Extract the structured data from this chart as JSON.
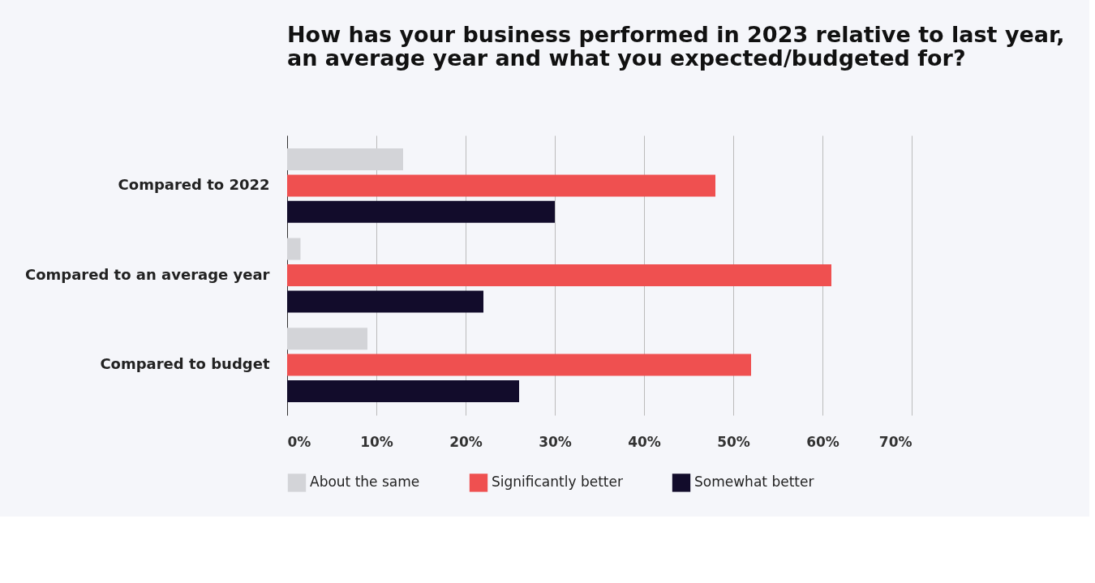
{
  "chart_data": {
    "type": "bar",
    "orientation": "horizontal",
    "title": "How has your business performed in 2023 relative to last year,\nan average year and what you expected/budgeted for?",
    "categories": [
      "Compared to 2022",
      "Compared to an average year",
      "Compared to budget"
    ],
    "series": [
      {
        "name": "About the same",
        "color": "#d3d4d8",
        "values": [
          13,
          1.5,
          9
        ]
      },
      {
        "name": "Significantly better",
        "color": "#ef5050",
        "values": [
          48,
          61,
          52
        ]
      },
      {
        "name": "Somewhat better",
        "color": "#120c2b",
        "values": [
          30,
          22,
          26
        ]
      }
    ],
    "xlim": [
      0,
      70
    ],
    "xticks": [
      {
        "value": 0,
        "label": "0%"
      },
      {
        "value": 10,
        "label": "10%"
      },
      {
        "value": 20,
        "label": "20%"
      },
      {
        "value": 30,
        "label": "30%"
      },
      {
        "value": 40,
        "label": "40%"
      },
      {
        "value": 50,
        "label": "50%"
      },
      {
        "value": 60,
        "label": "60%"
      },
      {
        "value": 70,
        "label": "70%"
      }
    ],
    "grid": "x",
    "legend": "bottom"
  }
}
